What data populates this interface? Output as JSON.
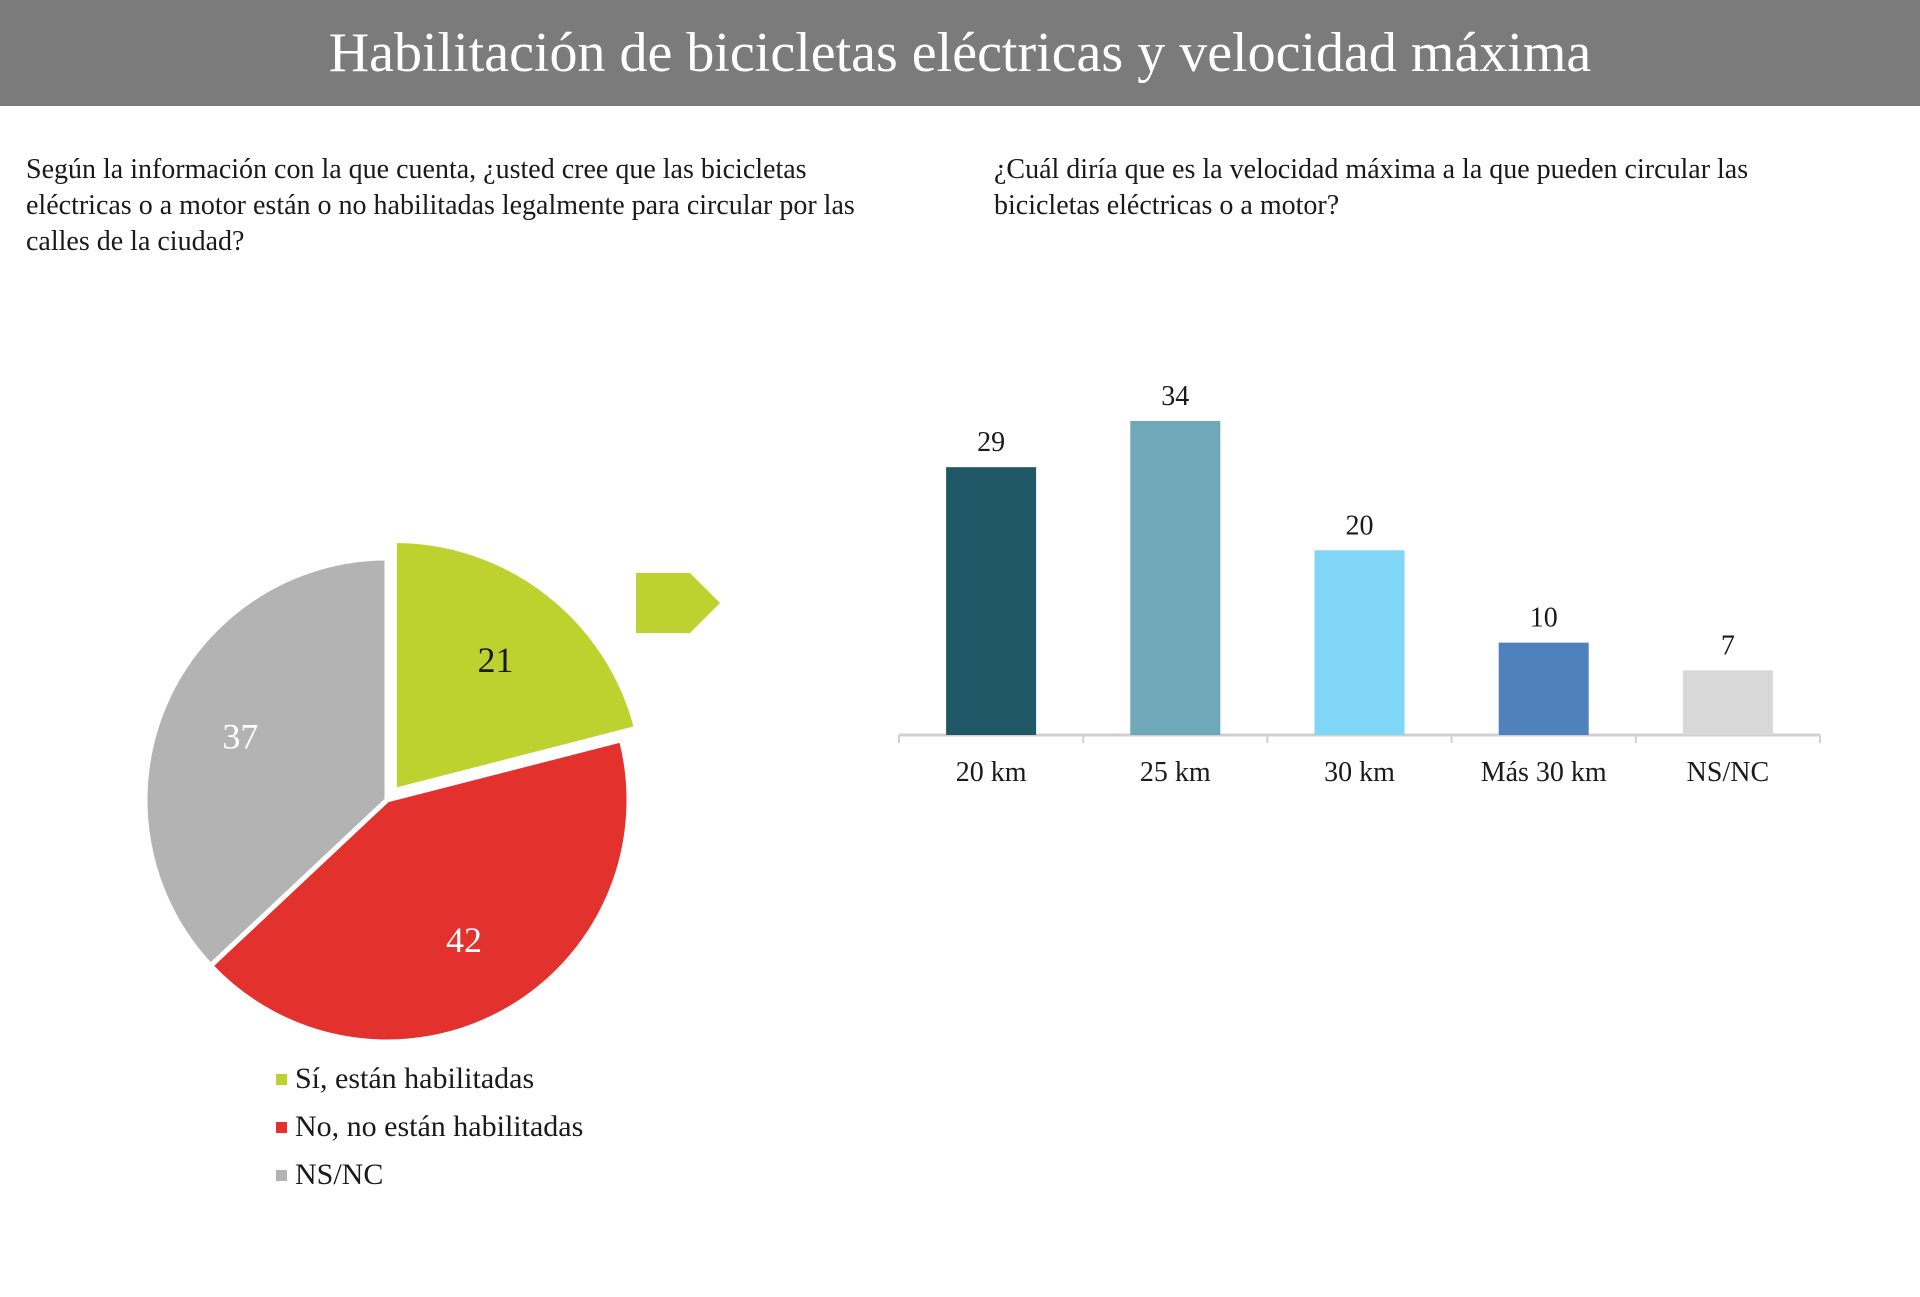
{
  "title": "Habilitación de bicicletas eléctricas y velocidad máxima",
  "colors": {
    "header_bg": "#7b7b7b",
    "arrow": "#bdd22f"
  },
  "chart_data": [
    {
      "type": "pie",
      "title": "Según la información con la que cuenta, ¿usted cree que las bicicletas eléctricas o a motor están o no habilitadas legalmente para circular por las calles de la ciudad?",
      "legend_position": "bottom",
      "slices": [
        {
          "label": "Sí, están habilitadas",
          "value": 21,
          "color": "#bdd22f",
          "label_color": "#1a1a1a",
          "exploded": true
        },
        {
          "label": "No, no están habilitadas",
          "value": 42,
          "color": "#e3312e",
          "label_color": "#ffffff",
          "exploded": false
        },
        {
          "label": "NS/NC",
          "value": 37,
          "color": "#b3b3b3",
          "label_color": "#ffffff",
          "exploded": false
        }
      ]
    },
    {
      "type": "bar",
      "title": "¿Cuál diría que es la velocidad máxima a la que pueden circular las bicicletas eléctricas o a motor?",
      "categories": [
        "20 km",
        "25 km",
        "30 km",
        "Más 30 km",
        "NS/NC"
      ],
      "values": [
        29,
        34,
        20,
        10,
        7
      ],
      "colors": [
        "#215867",
        "#6fa9b9",
        "#7fd6f6",
        "#4f81bd",
        "#d8d8d8"
      ],
      "xlabel": "",
      "ylabel": "",
      "ylim": [
        0,
        34
      ],
      "grid": false
    }
  ]
}
